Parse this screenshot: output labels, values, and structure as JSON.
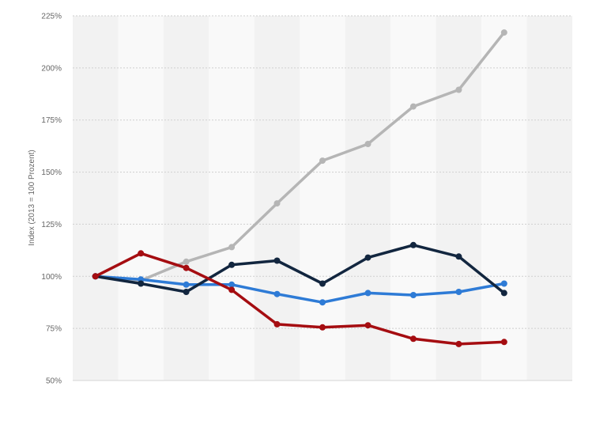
{
  "chart_data": {
    "type": "line",
    "title": "",
    "xlabel": "",
    "ylabel": "Index (2013 = 100 Prozent)",
    "y_unit": "%",
    "ylim": [
      50,
      225
    ],
    "y_ticks": [
      50,
      75,
      100,
      125,
      150,
      175,
      200,
      225
    ],
    "y_tick_labels": [
      "50%",
      "75%",
      "100%",
      "125%",
      "150%",
      "175%",
      "200%",
      "225%"
    ],
    "x": [
      1,
      2,
      3,
      4,
      5,
      6,
      7,
      8,
      9,
      10,
      11
    ],
    "grid": true,
    "legend": "none",
    "series": [
      {
        "color": "#b5b5b5",
        "values": [
          100,
          98,
          107,
          114,
          135,
          155.5,
          163.5,
          181.5,
          189.5,
          217,
          null
        ]
      },
      {
        "color": "#2e7bd6",
        "values": [
          100,
          98.5,
          96,
          96,
          91.5,
          87.5,
          92,
          91,
          92.5,
          96.5,
          null
        ]
      },
      {
        "color": "#12263f",
        "values": [
          100,
          96.5,
          92.5,
          105.5,
          107.5,
          96.5,
          109,
          115,
          109.5,
          92,
          null
        ]
      },
      {
        "color": "#a50d11",
        "values": [
          100,
          111,
          104,
          93.5,
          77,
          75.5,
          76.5,
          70,
          67.5,
          68.5,
          null
        ]
      }
    ]
  },
  "style": {
    "band_light": "#f9f9f9",
    "band_dark": "#f2f2f2",
    "grid_color": "#cfcfcf",
    "axis_line_color": "#d4d4d4",
    "series_line_width": 3.5,
    "marker_radius": 4
  }
}
